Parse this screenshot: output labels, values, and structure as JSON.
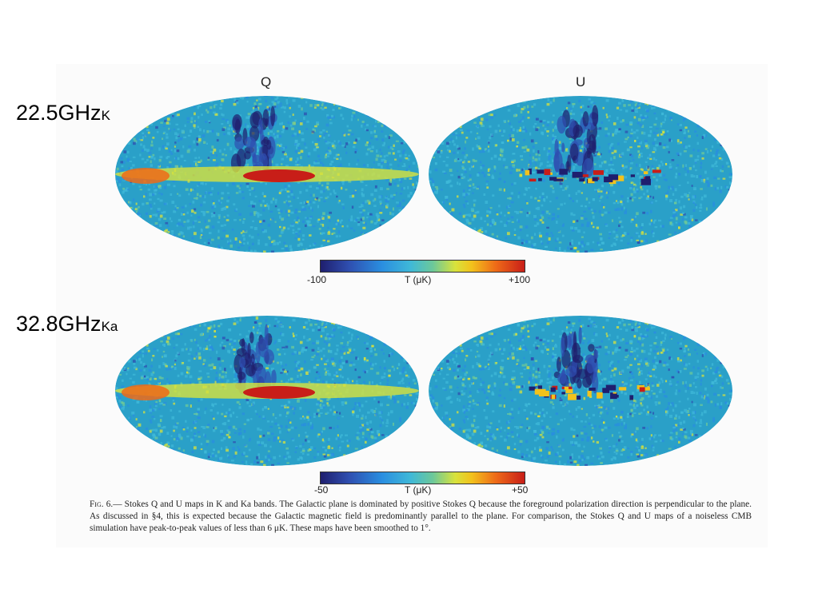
{
  "figure": {
    "column_titles": {
      "q": "Q",
      "u": "U"
    },
    "rows": [
      {
        "band_label": "22.5GHz",
        "band_sub": "K",
        "colorbar": {
          "min_label": "-100",
          "unit_label": "T (μK)",
          "max_label": "+100",
          "min": -100,
          "max": 100
        }
      },
      {
        "band_label": "32.8GHz",
        "band_sub": "Ka",
        "colorbar": {
          "min_label": "-50",
          "unit_label": "T (μK)",
          "max_label": "+50",
          "min": -50,
          "max": 50
        }
      }
    ],
    "colormap": [
      "#1f1f6e",
      "#2f4fb0",
      "#2a8ee0",
      "#3fb8d8",
      "#6cc89a",
      "#d8e23c",
      "#f2c21c",
      "#ee6a18",
      "#c81e18"
    ],
    "map_base_color": "#2aa0c8",
    "caption": {
      "lead": "Fig. 6.—",
      "text": " Stokes Q and U maps in K and Ka bands. The Galactic plane is dominated by positive Stokes Q because the foreground polarization direction is perpendicular to the plane. As discussed in §4, this is expected because the Galactic magnetic field is predominantly parallel to the plane. For comparison, the Stokes Q and U maps of a noiseless CMB simulation have peak-to-peak values of less than 6 μK. These maps have been smoothed to 1°."
    }
  }
}
